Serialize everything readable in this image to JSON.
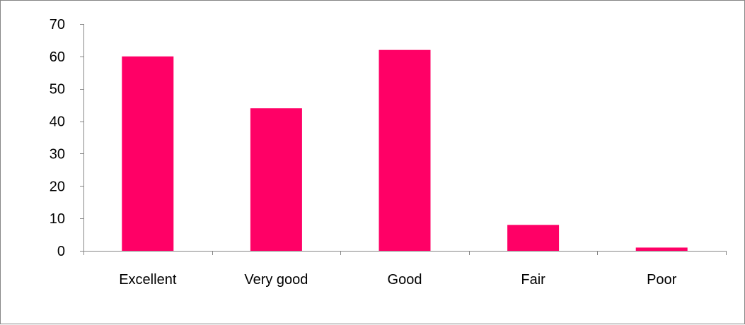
{
  "chart_data": {
    "type": "bar",
    "categories": [
      "Excellent",
      "Very good",
      "Good",
      "Fair",
      "Poor"
    ],
    "values": [
      60,
      44,
      62,
      8,
      1
    ],
    "title": "",
    "xlabel": "",
    "ylabel": "",
    "ylim": [
      0,
      70
    ],
    "yticks": [
      0,
      10,
      20,
      30,
      40,
      50,
      60,
      70
    ],
    "grid": false,
    "legend": "none",
    "colors": {
      "bar": "#ff0066",
      "axis": "#868686",
      "text": "#000000",
      "border": "#868686"
    }
  }
}
